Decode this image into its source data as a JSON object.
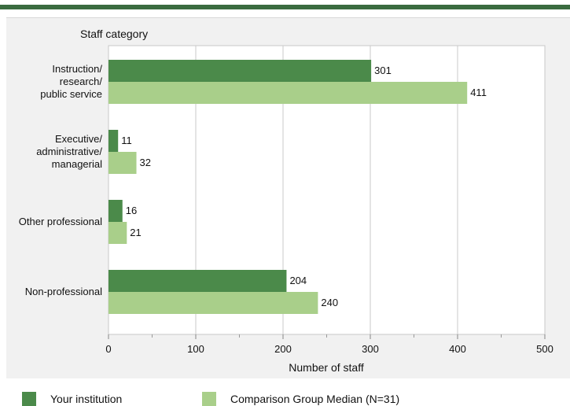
{
  "chart_data": {
    "type": "bar",
    "orientation": "horizontal",
    "title": "Staff category",
    "xlabel": "Number of staff",
    "xlim": [
      0,
      500
    ],
    "xticks": [
      0,
      100,
      200,
      300,
      400,
      500
    ],
    "grid": "vertical",
    "categories": [
      [
        "Instruction/",
        "research/",
        "public service"
      ],
      [
        "Executive/",
        "administrative/",
        "managerial"
      ],
      [
        "Other professional"
      ],
      [
        "Non-professional"
      ]
    ],
    "series": [
      {
        "name": "Your institution",
        "color": "#4b8a4a",
        "values": [
          301,
          11,
          16,
          204
        ]
      },
      {
        "name": "Comparison Group Median (N=31)",
        "color": "#a9cf8a",
        "values": [
          411,
          32,
          21,
          240
        ]
      }
    ],
    "legend_position": "bottom"
  },
  "colors": {
    "topbar": "#3a6b3f",
    "panel": "#f1f1f1",
    "plot": "#ffffff",
    "grid": "#c8c8c8"
  }
}
